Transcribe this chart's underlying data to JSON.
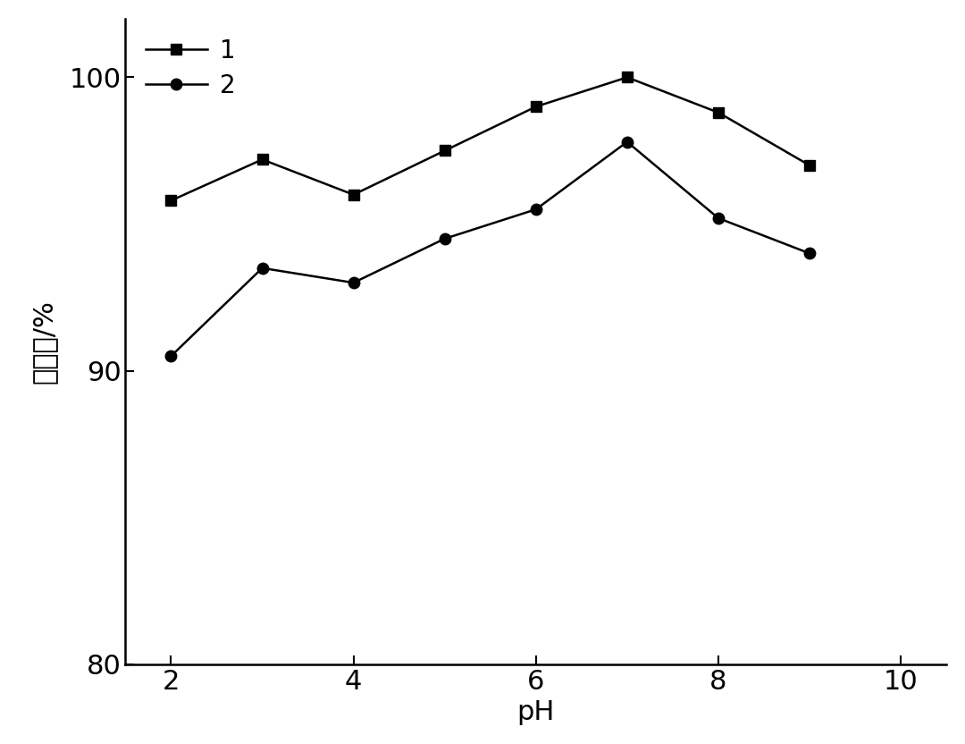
{
  "series1": {
    "x": [
      2,
      3,
      4,
      5,
      6,
      7,
      8,
      9
    ],
    "y": [
      95.8,
      97.2,
      96.0,
      97.5,
      99.0,
      100.0,
      98.8,
      97.0
    ],
    "label": "1",
    "marker": "s",
    "color": "#000000",
    "markersize": 9,
    "linewidth": 1.8
  },
  "series2": {
    "x": [
      2,
      3,
      4,
      5,
      6,
      7,
      8,
      9
    ],
    "y": [
      90.5,
      93.5,
      93.0,
      94.5,
      95.5,
      97.8,
      95.2,
      94.0
    ],
    "label": "2",
    "marker": "o",
    "color": "#000000",
    "markersize": 9,
    "linewidth": 1.8
  },
  "xlabel": "pH",
  "ylabel": "去除率/%",
  "xlim": [
    1.5,
    10.5
  ],
  "ylim": [
    80,
    102
  ],
  "yticks": [
    80,
    90,
    100
  ],
  "xticks": [
    2,
    4,
    6,
    8,
    10
  ],
  "xlabel_fontsize": 22,
  "ylabel_fontsize": 22,
  "tick_fontsize": 22,
  "legend_fontsize": 20,
  "background_color": "#ffffff"
}
